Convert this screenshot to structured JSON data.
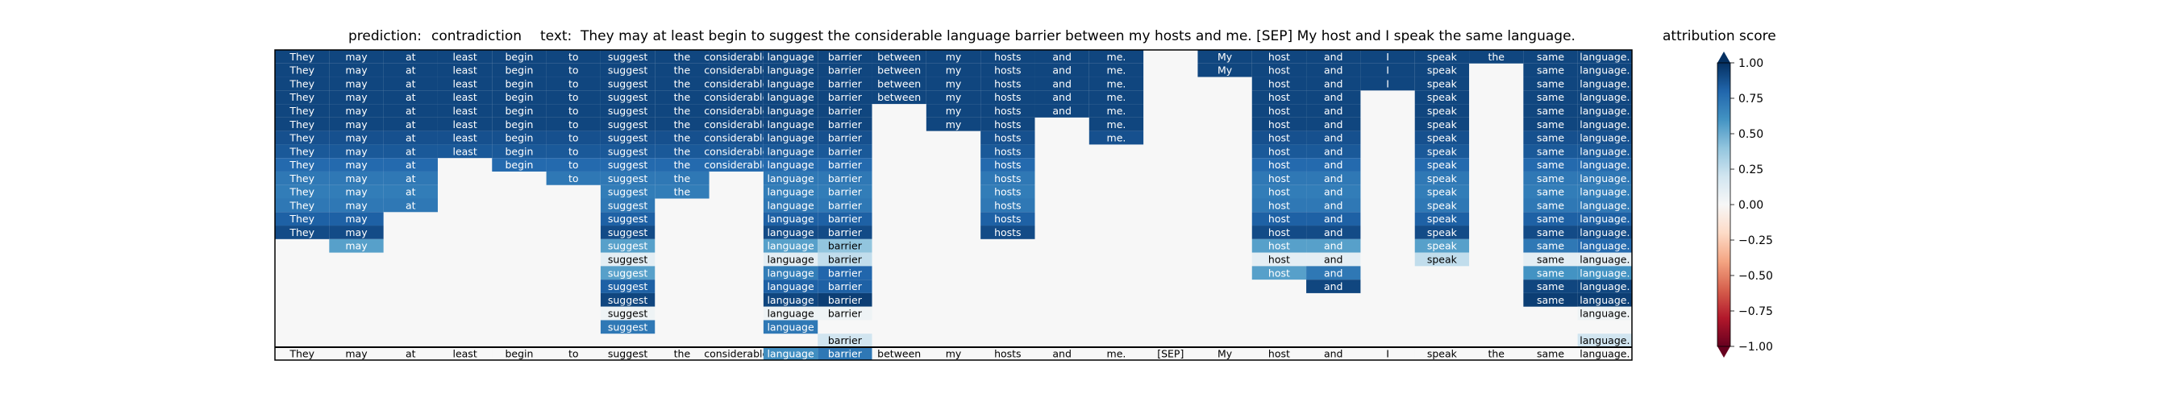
{
  "header": {
    "prediction_label": "prediction:",
    "prediction_value": "contradiction",
    "text_label": "text:",
    "text_value": "They may at least begin to suggest the considerable language barrier between my hosts and me. [SEP] My host and I speak the same language."
  },
  "colorbar": {
    "title": "attribution score",
    "ticks": [
      "1.00",
      "0.75",
      "0.50",
      "0.25",
      "0.00",
      "−0.25",
      "−0.50",
      "−0.75",
      "−1.00"
    ],
    "min": -1.0,
    "max": 1.0,
    "colors": [
      "#67001f",
      "#b2182b",
      "#d6604d",
      "#f4a582",
      "#fddbc7",
      "#f7f7f7",
      "#d1e5f0",
      "#92c5de",
      "#4393c3",
      "#2166ac",
      "#053061"
    ]
  },
  "chart_data": {
    "type": "heatmap",
    "title": "prediction: contradiction text: They may at least begin to suggest the considerable language barrier between my hosts and me. [SEP] My host and I speak the same language.",
    "tokens": [
      "They",
      "may",
      "at",
      "least",
      "begin",
      "to",
      "suggest",
      "the",
      "considerable",
      "language",
      "barrier",
      "between",
      "my",
      "hosts",
      "and",
      "me.",
      "[SEP]",
      "My",
      "host",
      "and",
      "I",
      "speak",
      "the",
      "same",
      "language."
    ],
    "rows": [
      [
        0.92,
        0.92,
        0.92,
        0.92,
        0.92,
        0.92,
        0.92,
        0.92,
        0.92,
        0.92,
        0.92,
        0.92,
        0.92,
        0.92,
        0.92,
        0.92,
        null,
        0.92,
        0.92,
        0.92,
        0.92,
        0.92,
        0.92,
        0.92,
        0.92
      ],
      [
        0.92,
        0.92,
        0.92,
        0.92,
        0.92,
        0.92,
        0.92,
        0.92,
        0.92,
        0.92,
        0.92,
        0.92,
        0.92,
        0.92,
        0.92,
        0.92,
        null,
        0.92,
        0.92,
        0.92,
        0.92,
        0.92,
        null,
        0.92,
        0.92
      ],
      [
        0.92,
        0.92,
        0.92,
        0.92,
        0.92,
        0.92,
        0.92,
        0.92,
        0.92,
        0.92,
        0.92,
        0.92,
        0.92,
        0.92,
        0.92,
        0.92,
        null,
        null,
        0.92,
        0.92,
        0.92,
        0.92,
        null,
        0.92,
        0.92
      ],
      [
        0.92,
        0.92,
        0.92,
        0.92,
        0.92,
        0.92,
        0.92,
        0.92,
        0.92,
        0.92,
        0.92,
        0.92,
        0.92,
        0.92,
        0.92,
        0.92,
        null,
        null,
        0.92,
        0.92,
        null,
        0.92,
        null,
        0.92,
        0.92
      ],
      [
        0.92,
        0.92,
        0.92,
        0.92,
        0.92,
        0.92,
        0.92,
        0.92,
        0.92,
        0.92,
        0.92,
        null,
        0.92,
        0.92,
        0.92,
        0.92,
        null,
        null,
        0.92,
        0.92,
        null,
        0.92,
        null,
        0.92,
        0.92
      ],
      [
        0.92,
        0.92,
        0.92,
        0.92,
        0.92,
        0.92,
        0.92,
        0.92,
        0.92,
        0.92,
        0.92,
        null,
        0.92,
        0.92,
        null,
        0.92,
        null,
        null,
        0.92,
        0.92,
        null,
        0.92,
        null,
        0.92,
        0.92
      ],
      [
        0.88,
        0.88,
        0.88,
        0.88,
        0.88,
        0.88,
        0.88,
        0.88,
        0.88,
        0.88,
        0.88,
        null,
        null,
        0.88,
        null,
        0.88,
        null,
        null,
        0.88,
        0.88,
        null,
        0.88,
        null,
        0.88,
        0.88
      ],
      [
        0.85,
        0.85,
        0.85,
        0.85,
        0.85,
        0.85,
        0.85,
        0.85,
        0.85,
        0.85,
        0.85,
        null,
        null,
        0.85,
        null,
        null,
        null,
        null,
        0.85,
        0.85,
        null,
        0.85,
        null,
        0.85,
        0.85
      ],
      [
        0.78,
        0.78,
        0.78,
        null,
        0.78,
        0.78,
        0.78,
        0.78,
        0.78,
        0.78,
        0.78,
        null,
        null,
        0.78,
        null,
        null,
        null,
        null,
        0.78,
        0.78,
        null,
        0.78,
        null,
        0.78,
        0.78
      ],
      [
        0.72,
        0.72,
        0.72,
        null,
        null,
        0.72,
        0.72,
        0.72,
        null,
        0.72,
        0.72,
        null,
        null,
        0.72,
        null,
        null,
        null,
        null,
        0.72,
        0.72,
        null,
        0.72,
        null,
        0.72,
        0.72
      ],
      [
        0.7,
        0.7,
        0.7,
        null,
        null,
        null,
        0.7,
        0.7,
        null,
        0.7,
        0.7,
        null,
        null,
        0.7,
        null,
        null,
        null,
        null,
        0.7,
        0.7,
        null,
        0.7,
        null,
        0.7,
        0.7
      ],
      [
        0.72,
        0.72,
        0.72,
        null,
        null,
        null,
        0.72,
        null,
        null,
        0.72,
        0.72,
        null,
        null,
        0.72,
        null,
        null,
        null,
        null,
        0.72,
        0.72,
        null,
        0.72,
        null,
        0.72,
        0.72
      ],
      [
        0.82,
        0.82,
        null,
        null,
        null,
        null,
        0.82,
        null,
        null,
        0.82,
        0.82,
        null,
        null,
        0.82,
        null,
        null,
        null,
        null,
        0.82,
        0.82,
        null,
        0.82,
        null,
        0.82,
        0.82
      ],
      [
        0.9,
        0.9,
        null,
        null,
        null,
        null,
        0.9,
        null,
        null,
        0.9,
        0.9,
        null,
        null,
        0.9,
        null,
        null,
        null,
        null,
        0.9,
        0.9,
        null,
        0.9,
        null,
        0.9,
        0.9
      ],
      [
        null,
        0.55,
        null,
        null,
        null,
        null,
        0.55,
        null,
        null,
        0.55,
        0.4,
        null,
        null,
        null,
        null,
        null,
        null,
        null,
        0.55,
        0.55,
        null,
        0.55,
        null,
        0.72,
        0.78
      ],
      [
        null,
        null,
        null,
        null,
        null,
        null,
        0.1,
        null,
        null,
        0.1,
        0.25,
        null,
        null,
        null,
        null,
        null,
        null,
        null,
        0.1,
        0.1,
        null,
        0.25,
        null,
        0.1,
        0.1
      ],
      [
        null,
        null,
        null,
        null,
        null,
        null,
        0.55,
        null,
        null,
        0.7,
        0.8,
        null,
        null,
        null,
        null,
        null,
        null,
        null,
        0.55,
        0.72,
        null,
        null,
        null,
        0.6,
        0.6
      ],
      [
        null,
        null,
        null,
        null,
        null,
        null,
        0.82,
        null,
        null,
        0.82,
        0.82,
        null,
        null,
        null,
        null,
        null,
        null,
        null,
        null,
        0.92,
        null,
        null,
        null,
        0.92,
        0.92
      ],
      [
        null,
        null,
        null,
        null,
        null,
        null,
        0.92,
        null,
        null,
        0.92,
        0.95,
        null,
        null,
        null,
        null,
        null,
        null,
        null,
        null,
        null,
        null,
        null,
        null,
        0.95,
        0.95
      ],
      [
        null,
        null,
        null,
        null,
        null,
        null,
        0.05,
        null,
        null,
        0.05,
        0.05,
        null,
        null,
        null,
        null,
        null,
        null,
        null,
        null,
        null,
        null,
        null,
        null,
        null,
        0.05
      ],
      [
        null,
        null,
        null,
        null,
        null,
        null,
        0.72,
        null,
        null,
        0.72,
        null,
        null,
        null,
        null,
        null,
        null,
        null,
        null,
        null,
        null,
        null,
        null,
        null,
        null,
        null
      ],
      [
        null,
        null,
        null,
        null,
        null,
        null,
        null,
        null,
        null,
        null,
        0.2,
        null,
        null,
        null,
        null,
        null,
        null,
        null,
        null,
        null,
        null,
        null,
        null,
        null,
        0.2
      ],
      [
        0.0,
        0.0,
        0.0,
        0.0,
        0.0,
        0.0,
        0.0,
        0.0,
        0.0,
        0.62,
        0.72,
        0.0,
        0.0,
        0.0,
        0.0,
        0.0,
        0.0,
        0.0,
        0.0,
        0.0,
        0.0,
        0.0,
        0.0,
        0.0,
        0.0
      ]
    ],
    "ylim": [
      -1.0,
      1.0
    ],
    "colorbar_label": "attribution score"
  }
}
